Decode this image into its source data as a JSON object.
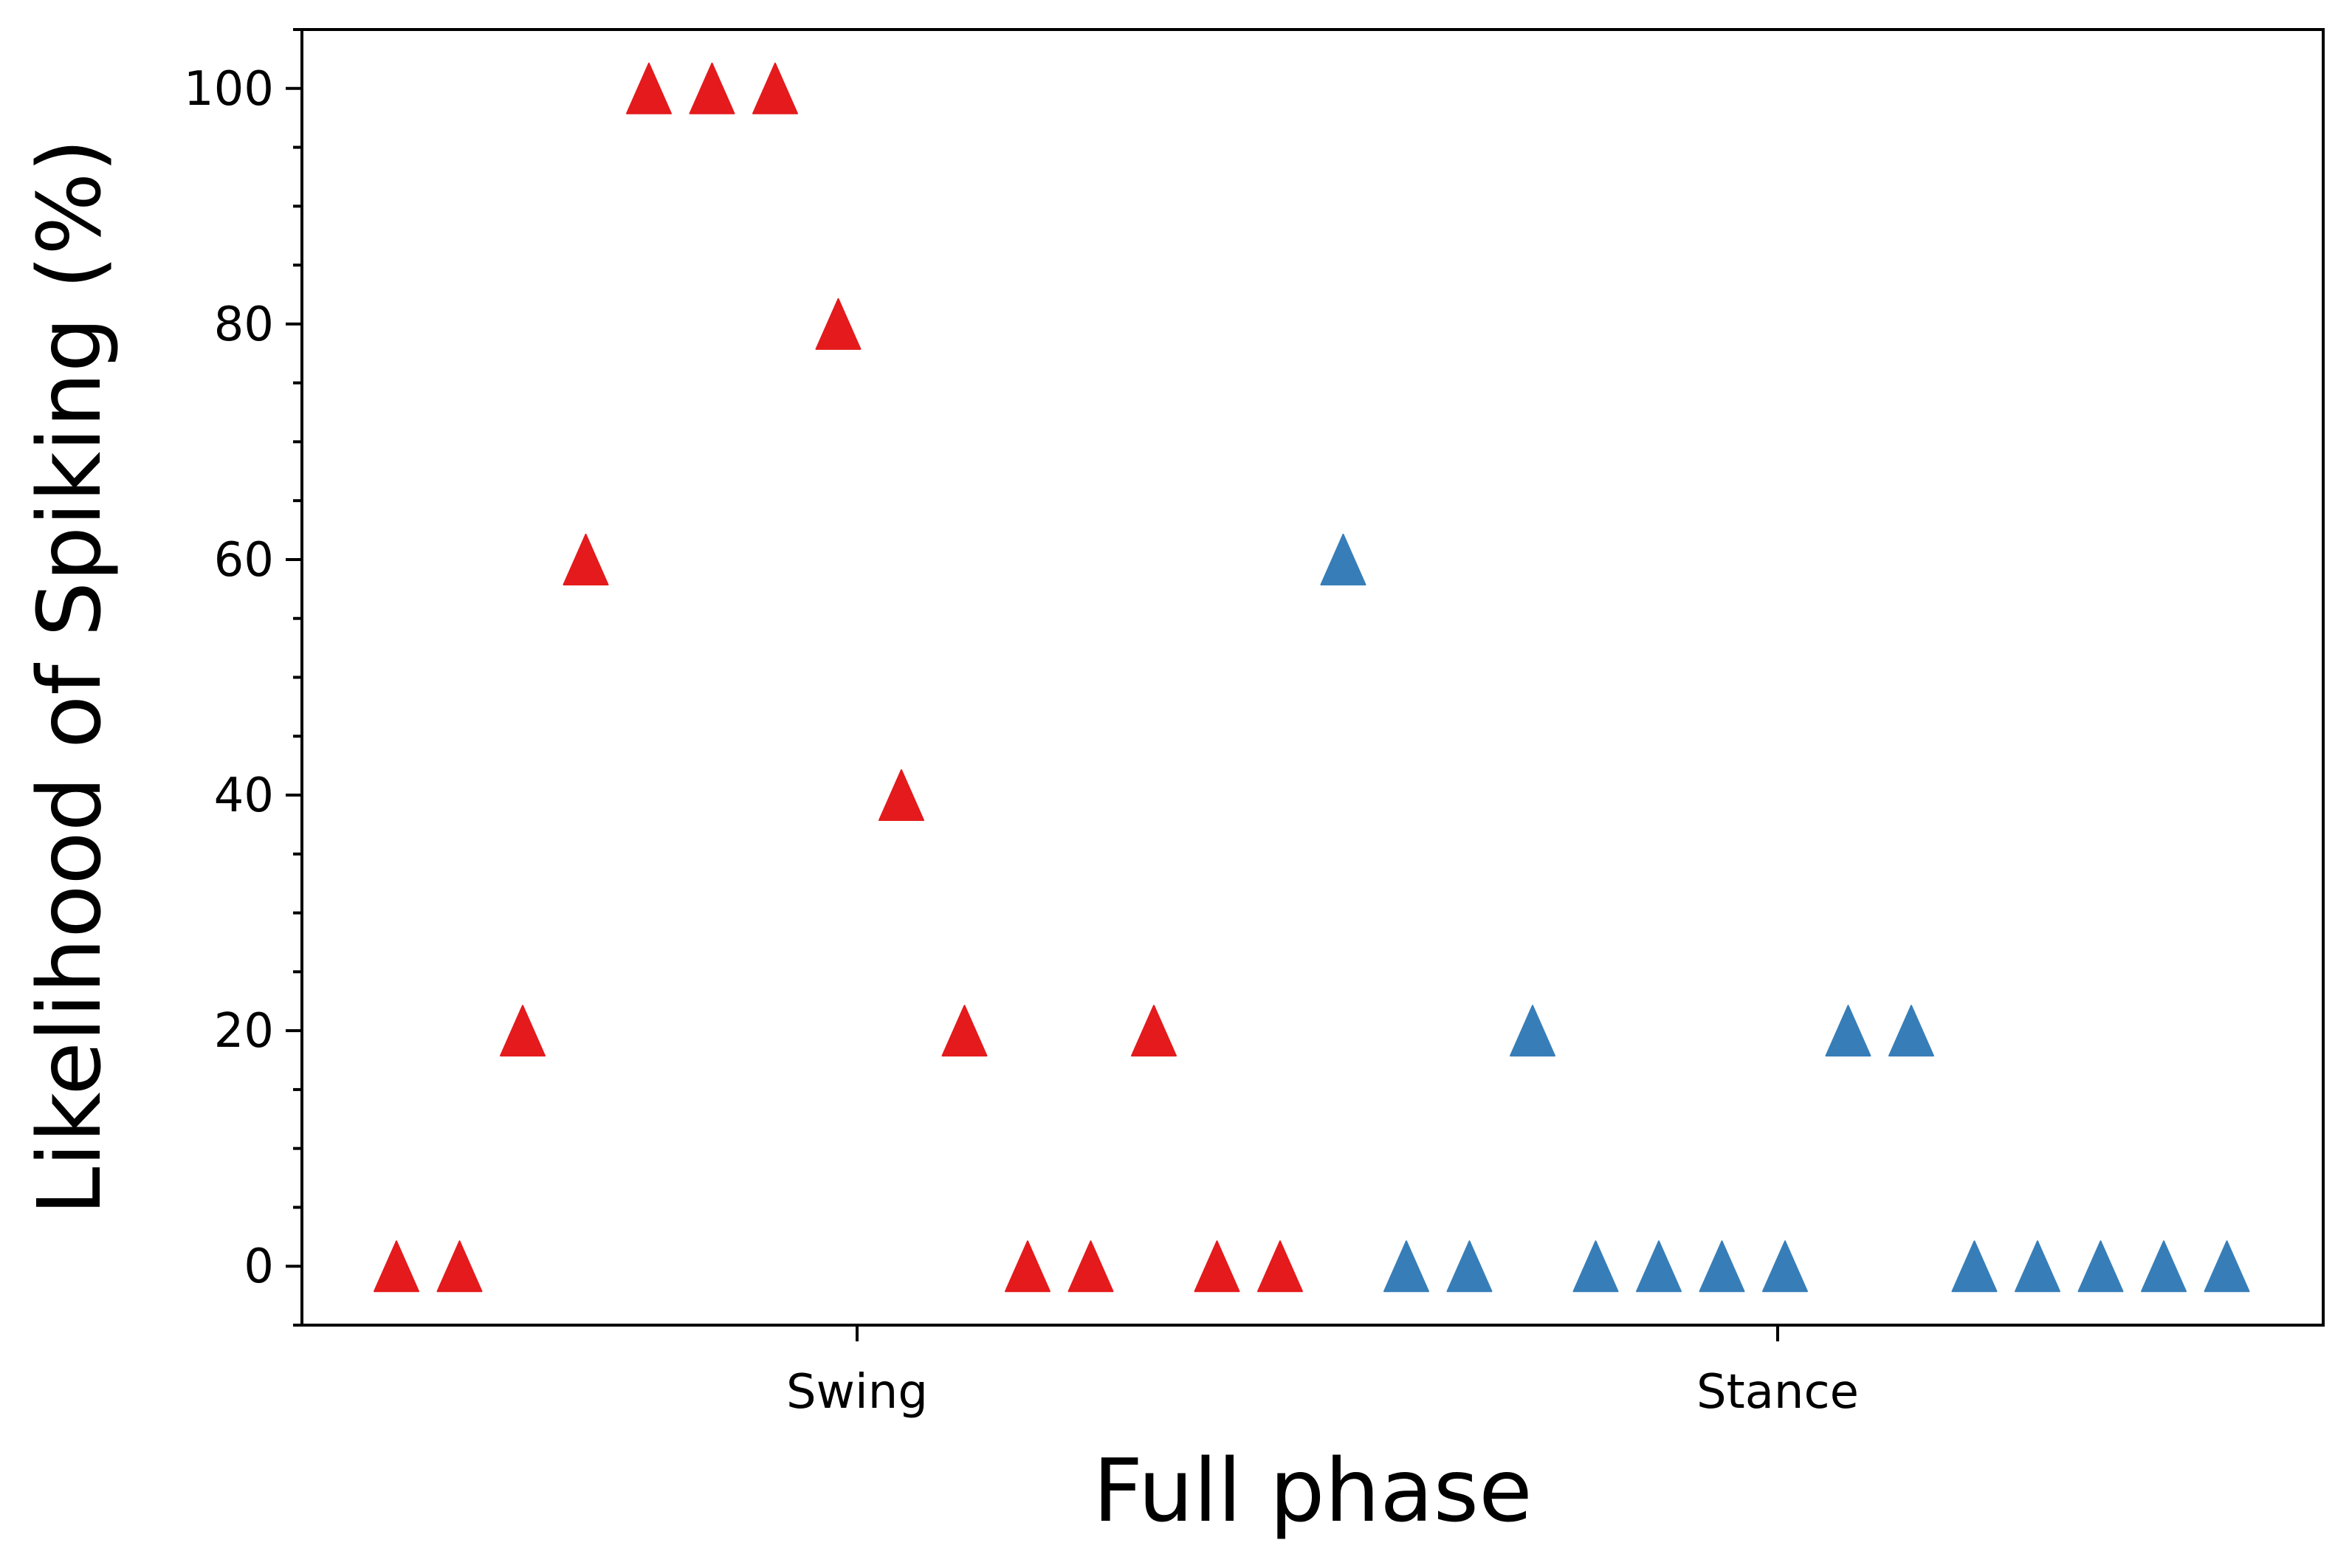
{
  "chart_data": {
    "type": "scatter",
    "title": "",
    "xlabel": "Full phase",
    "ylabel": "Likelihood of Spiking (%)",
    "ylim": [
      -5,
      105
    ],
    "yticks": [
      "0",
      "20",
      "40",
      "60",
      "80",
      "100"
    ],
    "x_category_labels": [
      "Swing",
      "Stance"
    ],
    "marker": "triangle-up",
    "grid": false,
    "series": [
      {
        "color": "#e41a1c",
        "values": [
          0,
          0,
          20,
          60,
          100,
          100,
          100,
          80,
          40,
          20,
          0,
          0,
          20,
          0,
          0
        ]
      },
      {
        "color": "#377eb8",
        "values": [
          60,
          0,
          0,
          20,
          0,
          0,
          0,
          0,
          20,
          20,
          0,
          0,
          0,
          0,
          0
        ]
      }
    ]
  }
}
